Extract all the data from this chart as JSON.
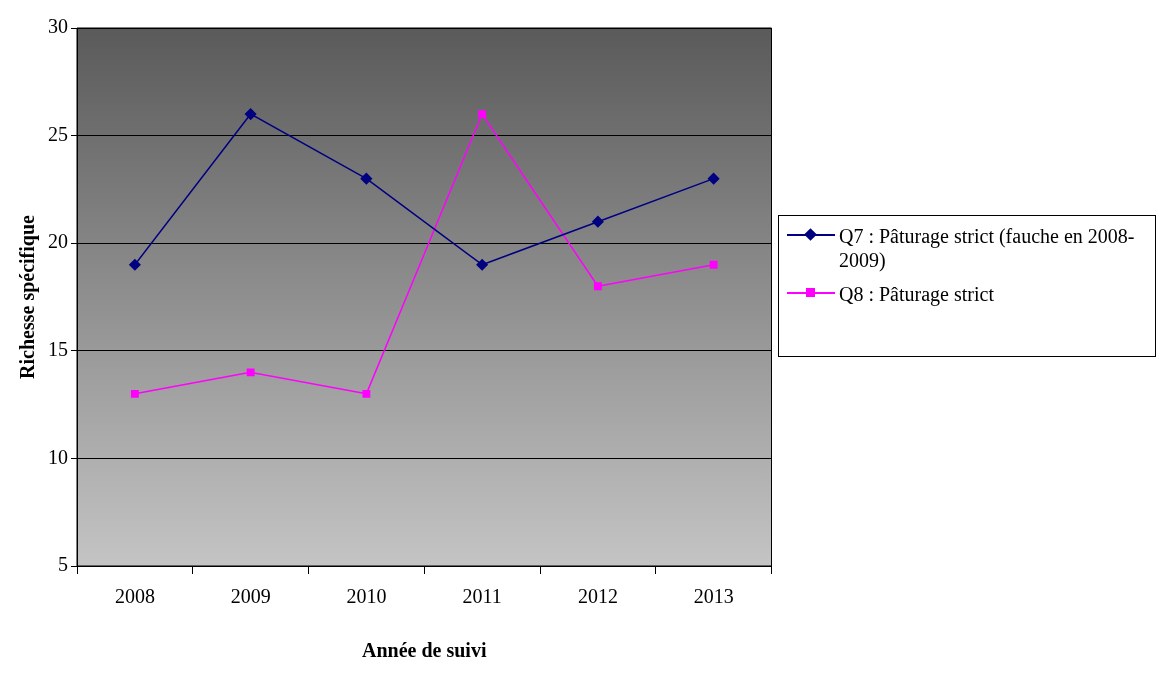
{
  "chart_data": {
    "type": "line",
    "xlabel": "Année de suivi",
    "ylabel": "Richesse spécifique",
    "categories": [
      "2008",
      "2009",
      "2010",
      "2011",
      "2012",
      "2013"
    ],
    "series": [
      {
        "name": "Q7 : Pâturage strict (fauche en 2008-2009)",
        "color": "#000080",
        "marker": "diamond",
        "values": [
          19,
          26,
          23,
          19,
          21,
          23
        ]
      },
      {
        "name": "Q8 : Pâturage strict",
        "color": "#ff00ff",
        "marker": "square",
        "values": [
          13,
          14,
          13,
          26,
          18,
          19
        ]
      }
    ],
    "ylim": [
      5,
      30
    ],
    "yticks": [
      5,
      10,
      15,
      20,
      25,
      30
    ],
    "grid": "y",
    "legend": "right",
    "line_style": "solid"
  }
}
